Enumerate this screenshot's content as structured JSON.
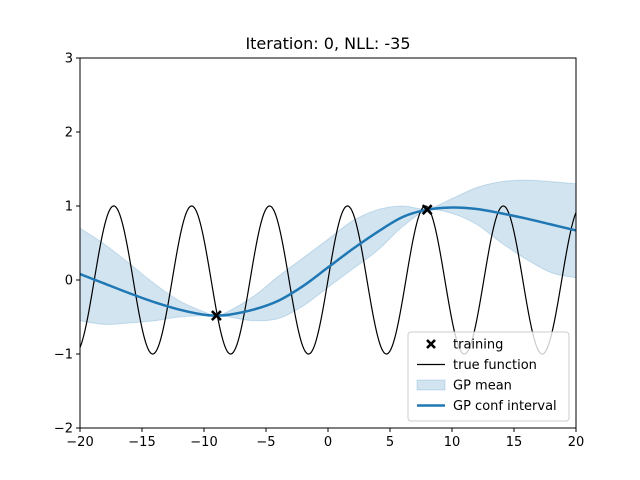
{
  "chart_data": {
    "type": "line",
    "title": "Iteration: 0, NLL: -35",
    "xlabel": "",
    "ylabel": "",
    "xlim": [
      -20,
      20
    ],
    "ylim": [
      -2,
      3
    ],
    "x_ticks": [
      -20,
      -15,
      -10,
      -5,
      0,
      5,
      10,
      15,
      20
    ],
    "x_tick_labels": [
      "−20",
      "−15",
      "−10",
      "−5",
      "0",
      "5",
      "10",
      "15",
      "20"
    ],
    "y_ticks": [
      -2,
      -1,
      0,
      1,
      2,
      3
    ],
    "y_tick_labels": [
      "−2",
      "−1",
      "0",
      "1",
      "2",
      "3"
    ],
    "grid": false,
    "legend_position": "bottom-right",
    "true_function": {
      "kind": "sine",
      "amplitude": 1,
      "frequency": 1.0,
      "x_range": [
        -20,
        20
      ]
    },
    "series": [
      {
        "name": "GP conf interval",
        "x": [
          -20,
          -18,
          -16,
          -14,
          -12,
          -10,
          -9,
          -8,
          -6,
          -4,
          -2,
          0,
          2,
          4,
          6,
          8,
          10,
          12,
          14,
          16,
          18,
          20
        ],
        "y": [
          0.08,
          -0.05,
          -0.18,
          -0.3,
          -0.4,
          -0.47,
          -0.48,
          -0.47,
          -0.4,
          -0.28,
          -0.08,
          0.17,
          0.42,
          0.65,
          0.85,
          0.95,
          0.98,
          0.96,
          0.9,
          0.83,
          0.75,
          0.67
        ],
        "color": "#1f77b4"
      },
      {
        "name": "GP mean",
        "x": [
          -20,
          -18,
          -16,
          -14,
          -12,
          -10,
          -9,
          -8,
          -6,
          -4,
          -2,
          0,
          2,
          4,
          6,
          8,
          10,
          12,
          14,
          16,
          18,
          20
        ],
        "lower": [
          -0.55,
          -0.6,
          -0.58,
          -0.55,
          -0.5,
          -0.48,
          -0.48,
          -0.5,
          -0.55,
          -0.52,
          -0.35,
          -0.1,
          0.15,
          0.4,
          0.72,
          0.94,
          0.9,
          0.75,
          0.5,
          0.28,
          0.1,
          0.03
        ],
        "upper": [
          0.7,
          0.48,
          0.22,
          -0.05,
          -0.28,
          -0.43,
          -0.48,
          -0.42,
          -0.22,
          0.05,
          0.3,
          0.55,
          0.8,
          0.95,
          1.0,
          0.96,
          1.1,
          1.25,
          1.33,
          1.35,
          1.33,
          1.3
        ],
        "color": "#1f77b4"
      }
    ],
    "training": {
      "name": "training",
      "x": [
        -9,
        8
      ],
      "y": [
        -0.48,
        0.95
      ]
    },
    "legend": [
      {
        "label": "training",
        "marker": "x"
      },
      {
        "label": "true function",
        "marker": "thin-line"
      },
      {
        "label": "GP mean",
        "marker": "patch"
      },
      {
        "label": "GP conf interval",
        "marker": "thick-line"
      }
    ]
  }
}
